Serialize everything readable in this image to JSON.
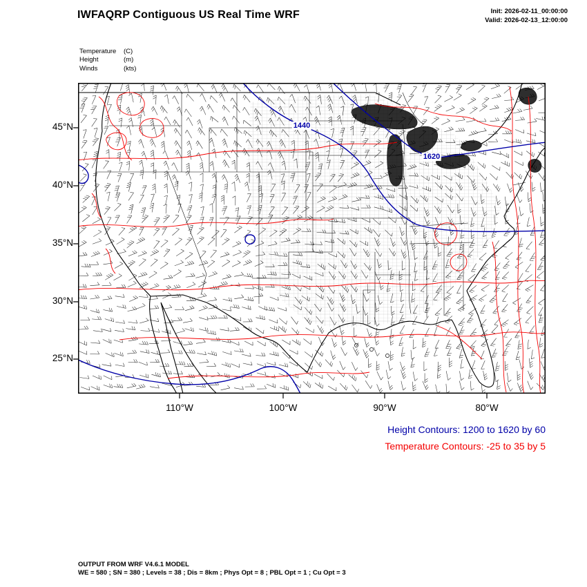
{
  "header": {
    "title": "IWFAQRP Contiguous US Real Time WRF",
    "init": "Init: 2026-02-11_00:00:00",
    "valid": "Valid: 2026-02-13_12:00:00"
  },
  "legend": {
    "rows": [
      {
        "name": "Temperature",
        "unit": "(C)"
      },
      {
        "name": "Height",
        "unit": "(m)"
      },
      {
        "name": "Winds",
        "unit": "(kts)"
      }
    ]
  },
  "axes": {
    "lat": [
      "45°N",
      "40°N",
      "35°N",
      "30°N",
      "25°N"
    ],
    "lon": [
      "110°W",
      "100°W",
      "90°W",
      "80°W"
    ]
  },
  "map": {
    "contour_labels": [
      {
        "text": "1440"
      },
      {
        "text": "1620"
      }
    ]
  },
  "annotations": {
    "height": "Height Contours: 1200 to 1620 by 60",
    "temperature": "Temperature Contours: -25 to 35 by 5"
  },
  "footer": {
    "line1": "OUTPUT FROM WRF V4.6.1 MODEL",
    "line2": "WE = 580 ; SN = 380 ; Levels = 38 ; Dis = 8km ; Phys Opt = 8 ; PBL Opt = 1 ; Cu Opt = 3"
  },
  "colors": {
    "height_contour": "#0000a8",
    "temperature_contour": "#f40000",
    "map_lines": "#000000"
  }
}
